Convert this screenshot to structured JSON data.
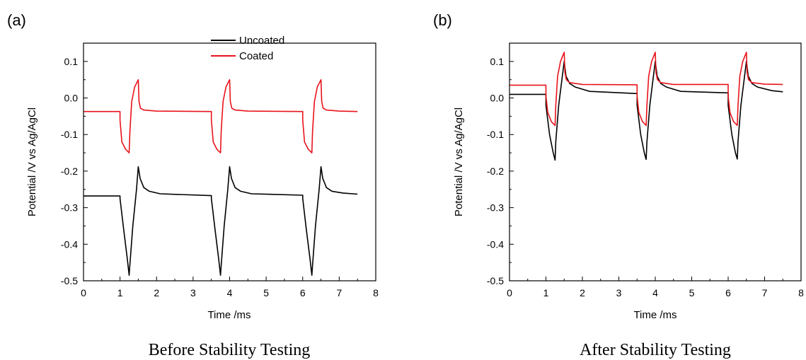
{
  "chart_data": [
    {
      "type": "line",
      "panel_label": "(a)",
      "caption": "Before Stability Testing",
      "xlabel": "Time /ms",
      "ylabel": "Potential /V vs Ag/AgCl",
      "xlim": [
        0,
        8
      ],
      "ylim": [
        -0.5,
        0.15
      ],
      "xticks": [
        "0",
        "1",
        "2",
        "3",
        "4",
        "5",
        "6",
        "7",
        "8"
      ],
      "yticks": [
        "-0.5",
        "-0.4",
        "-0.3",
        "-0.2",
        "-0.1",
        "0.0",
        "0.1"
      ],
      "legend": {
        "position": "top-center"
      },
      "series": [
        {
          "name": "Uncoated",
          "color": "#000000",
          "x": [
            0,
            1.0,
            1.0,
            1.1,
            1.2,
            1.25,
            1.26,
            1.35,
            1.45,
            1.5,
            1.55,
            1.65,
            1.8,
            2.1,
            3.5,
            3.5,
            3.6,
            3.7,
            3.75,
            3.76,
            3.85,
            3.95,
            4.0,
            4.05,
            4.15,
            4.3,
            4.6,
            6.0,
            6.0,
            6.1,
            6.2,
            6.25,
            6.26,
            6.35,
            6.45,
            6.5,
            6.55,
            6.65,
            6.8,
            7.1,
            7.5
          ],
          "y": [
            -0.268,
            -0.268,
            -0.275,
            -0.36,
            -0.44,
            -0.485,
            -0.47,
            -0.35,
            -0.25,
            -0.188,
            -0.22,
            -0.245,
            -0.255,
            -0.262,
            -0.267,
            -0.275,
            -0.36,
            -0.44,
            -0.485,
            -0.47,
            -0.35,
            -0.25,
            -0.188,
            -0.22,
            -0.245,
            -0.255,
            -0.262,
            -0.266,
            -0.275,
            -0.36,
            -0.44,
            -0.485,
            -0.47,
            -0.35,
            -0.25,
            -0.188,
            -0.22,
            -0.245,
            -0.255,
            -0.26,
            -0.263
          ]
        },
        {
          "name": "Coated",
          "color": "#e8131b",
          "x": [
            0,
            1.0,
            1.0,
            1.05,
            1.15,
            1.25,
            1.27,
            1.32,
            1.4,
            1.5,
            1.52,
            1.56,
            1.65,
            2.0,
            3.5,
            3.5,
            3.55,
            3.65,
            3.75,
            3.77,
            3.82,
            3.9,
            4.0,
            4.02,
            4.06,
            4.15,
            4.5,
            6.0,
            6.0,
            6.05,
            6.15,
            6.25,
            6.27,
            6.32,
            6.4,
            6.5,
            6.52,
            6.56,
            6.65,
            7.0,
            7.5
          ],
          "y": [
            -0.037,
            -0.037,
            -0.06,
            -0.12,
            -0.14,
            -0.15,
            -0.09,
            -0.01,
            0.03,
            0.05,
            -0.01,
            -0.028,
            -0.033,
            -0.036,
            -0.037,
            -0.06,
            -0.12,
            -0.14,
            -0.15,
            -0.09,
            -0.01,
            0.03,
            0.05,
            -0.01,
            -0.028,
            -0.033,
            -0.036,
            -0.037,
            -0.06,
            -0.12,
            -0.14,
            -0.15,
            -0.09,
            -0.01,
            0.03,
            0.05,
            -0.01,
            -0.028,
            -0.033,
            -0.036,
            -0.037
          ]
        }
      ]
    },
    {
      "type": "line",
      "panel_label": "(b)",
      "caption": "After Stability Testing",
      "xlabel": "Time /ms",
      "ylabel": "Potential /V vs Ag/AgCl",
      "xlim": [
        0,
        8
      ],
      "ylim": [
        -0.5,
        0.15
      ],
      "xticks": [
        "0",
        "1",
        "2",
        "3",
        "4",
        "5",
        "6",
        "7",
        "8"
      ],
      "yticks": [
        "-0.5",
        "-0.4",
        "-0.3",
        "-0.2",
        "-0.1",
        "0.0",
        "0.1"
      ],
      "series": [
        {
          "name": "Uncoated",
          "color": "#000000",
          "x": [
            0,
            0.5,
            1.0,
            1.0,
            1.1,
            1.2,
            1.25,
            1.27,
            1.35,
            1.45,
            1.5,
            1.55,
            1.65,
            1.8,
            2.2,
            3.5,
            3.5,
            3.6,
            3.7,
            3.75,
            3.77,
            3.85,
            3.95,
            4.0,
            4.05,
            4.15,
            4.3,
            4.7,
            6.0,
            6.0,
            6.1,
            6.2,
            6.25,
            6.27,
            6.35,
            6.45,
            6.5,
            6.55,
            6.65,
            6.8,
            7.2,
            7.5
          ],
          "y": [
            0.01,
            0.01,
            0.01,
            -0.02,
            -0.1,
            -0.15,
            -0.17,
            -0.12,
            -0.02,
            0.06,
            0.1,
            0.06,
            0.04,
            0.03,
            0.018,
            0.012,
            -0.02,
            -0.1,
            -0.15,
            -0.168,
            -0.12,
            -0.02,
            0.06,
            0.1,
            0.06,
            0.04,
            0.03,
            0.018,
            0.014,
            -0.02,
            -0.1,
            -0.15,
            -0.167,
            -0.12,
            -0.02,
            0.06,
            0.1,
            0.06,
            0.04,
            0.03,
            0.02,
            0.017
          ]
        },
        {
          "name": "Coated",
          "color": "#e8131b",
          "x": [
            0,
            1.0,
            1.0,
            1.05,
            1.15,
            1.25,
            1.27,
            1.32,
            1.4,
            1.5,
            1.52,
            1.56,
            1.65,
            2.0,
            3.5,
            3.5,
            3.55,
            3.65,
            3.75,
            3.77,
            3.82,
            3.9,
            4.0,
            4.02,
            4.06,
            4.15,
            4.5,
            6.0,
            6.0,
            6.05,
            6.15,
            6.25,
            6.27,
            6.32,
            6.4,
            6.5,
            6.52,
            6.56,
            6.65,
            7.0,
            7.5
          ],
          "y": [
            0.035,
            0.035,
            0.005,
            -0.04,
            -0.065,
            -0.075,
            -0.02,
            0.06,
            0.1,
            0.125,
            0.07,
            0.05,
            0.042,
            0.037,
            0.036,
            0.005,
            -0.04,
            -0.065,
            -0.075,
            -0.02,
            0.06,
            0.1,
            0.125,
            0.07,
            0.05,
            0.042,
            0.037,
            0.037,
            0.005,
            -0.04,
            -0.065,
            -0.075,
            -0.02,
            0.06,
            0.1,
            0.125,
            0.07,
            0.05,
            0.042,
            0.038,
            0.037
          ]
        }
      ]
    }
  ]
}
